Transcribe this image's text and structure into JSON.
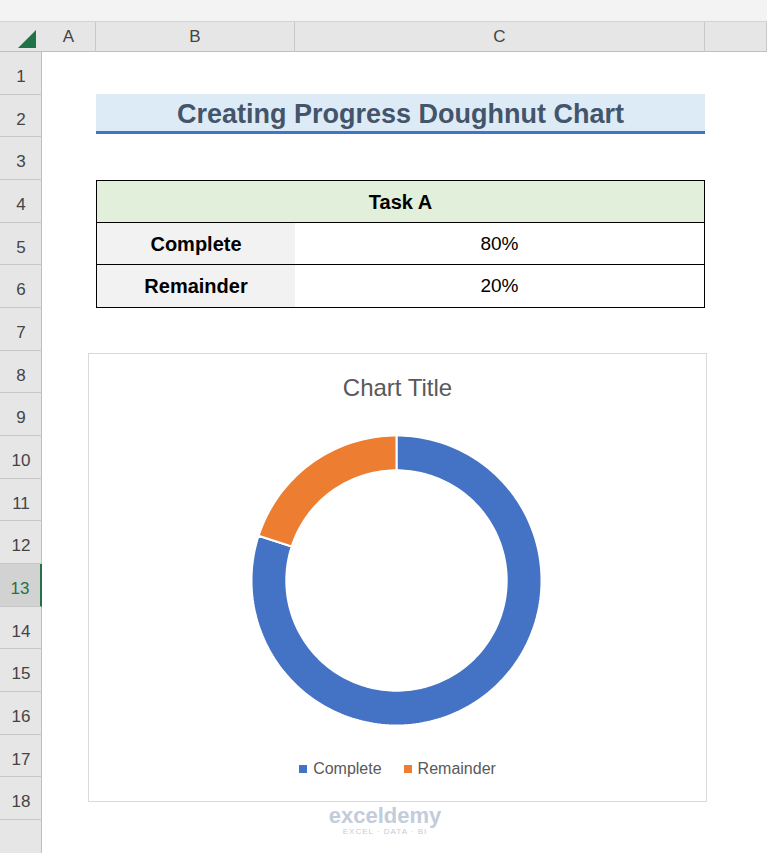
{
  "sheet": {
    "columns": [
      "A",
      "B",
      "C"
    ],
    "rows": [
      1,
      2,
      3,
      4,
      5,
      6,
      7,
      8,
      9,
      10,
      11,
      12,
      13,
      14,
      15,
      16,
      17,
      18
    ],
    "selected_row": 13
  },
  "heading": "Creating Progress Doughnut Chart",
  "table": {
    "header": "Task A",
    "rows": [
      [
        "Complete",
        "80%"
      ],
      [
        "Remainder",
        "20%"
      ]
    ]
  },
  "chart_data": {
    "type": "doughnut",
    "title": "Chart Title",
    "categories": [
      "Complete",
      "Remainder"
    ],
    "values": [
      80,
      20
    ],
    "colors": [
      "#4472c4",
      "#ed7d31"
    ],
    "legend": "bottom"
  },
  "watermark": {
    "name": "exceldemy",
    "tagline": "EXCEL · DATA · BI"
  }
}
